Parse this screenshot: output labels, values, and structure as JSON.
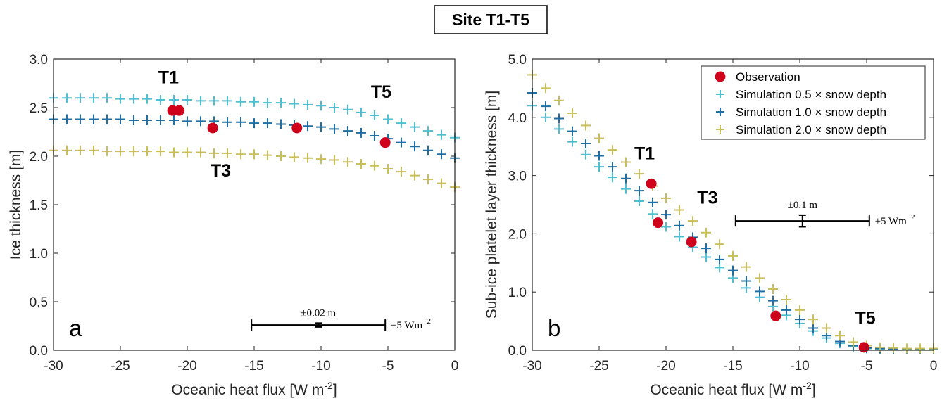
{
  "title": "Site T1-T5",
  "colors": {
    "observation": "#d0021b",
    "sim_0_5": "#4dbfd0",
    "sim_1_0": "#1f6fa5",
    "sim_2_0": "#c9bf5a"
  },
  "chart_data": [
    {
      "type": "scatter",
      "panel_label": "a",
      "xlabel": "Oceanic heat flux [W m",
      "xlabel_sup": "-2",
      "xlabel_end": "]",
      "ylabel": "Ice thickness [m]",
      "xlim": [
        -30,
        0
      ],
      "ylim": [
        0,
        3
      ],
      "xticks": [
        -30,
        -25,
        -20,
        -15,
        -10,
        -5,
        0
      ],
      "xtick_labels": [
        "-30",
        "-25",
        "-20",
        "-15",
        "-10",
        "-5",
        "0"
      ],
      "yticks": [
        0,
        0.5,
        1,
        1.5,
        2,
        2.5,
        3
      ],
      "ytick_labels": [
        "0.0",
        "0.5",
        "1.0",
        "1.5",
        "2.0",
        "2.5",
        "3.0"
      ],
      "grid": false,
      "series": [
        {
          "key": "sim_0_5",
          "marker": "plus",
          "x": [
            -30,
            -29,
            -28,
            -27,
            -26,
            -25,
            -24,
            -23,
            -22,
            -21,
            -20,
            -19,
            -18,
            -17,
            -16,
            -15,
            -14,
            -13,
            -12,
            -11,
            -10,
            -9,
            -8,
            -7,
            -6,
            -5,
            -4,
            -3,
            -2,
            -1,
            0
          ],
          "y": [
            2.6,
            2.6,
            2.6,
            2.6,
            2.6,
            2.59,
            2.59,
            2.59,
            2.58,
            2.58,
            2.58,
            2.57,
            2.57,
            2.57,
            2.56,
            2.56,
            2.55,
            2.55,
            2.54,
            2.53,
            2.52,
            2.5,
            2.48,
            2.45,
            2.42,
            2.38,
            2.34,
            2.3,
            2.26,
            2.22,
            2.19
          ]
        },
        {
          "key": "sim_1_0",
          "marker": "plus",
          "x": [
            -30,
            -29,
            -28,
            -27,
            -26,
            -25,
            -24,
            -23,
            -22,
            -21,
            -20,
            -19,
            -18,
            -17,
            -16,
            -15,
            -14,
            -13,
            -12,
            -11,
            -10,
            -9,
            -8,
            -7,
            -6,
            -5,
            -4,
            -3,
            -2,
            -1,
            0
          ],
          "y": [
            2.38,
            2.38,
            2.38,
            2.38,
            2.38,
            2.38,
            2.37,
            2.37,
            2.37,
            2.37,
            2.36,
            2.36,
            2.36,
            2.35,
            2.35,
            2.34,
            2.34,
            2.33,
            2.32,
            2.31,
            2.3,
            2.28,
            2.26,
            2.24,
            2.21,
            2.18,
            2.14,
            2.1,
            2.06,
            2.02,
            1.98
          ]
        },
        {
          "key": "sim_2_0",
          "marker": "plus",
          "x": [
            -30,
            -29,
            -28,
            -27,
            -26,
            -25,
            -24,
            -23,
            -22,
            -21,
            -20,
            -19,
            -18,
            -17,
            -16,
            -15,
            -14,
            -13,
            -12,
            -11,
            -10,
            -9,
            -8,
            -7,
            -6,
            -5,
            -4,
            -3,
            -2,
            -1,
            0
          ],
          "y": [
            2.06,
            2.06,
            2.06,
            2.06,
            2.05,
            2.05,
            2.05,
            2.05,
            2.05,
            2.04,
            2.04,
            2.04,
            2.03,
            2.03,
            2.02,
            2.02,
            2.01,
            2.0,
            1.99,
            1.98,
            1.97,
            1.96,
            1.94,
            1.92,
            1.9,
            1.87,
            1.84,
            1.8,
            1.76,
            1.72,
            1.68
          ]
        },
        {
          "key": "observation",
          "marker": "dot",
          "x": [
            -21.1,
            -20.6,
            -18.1,
            -11.8,
            -5.2
          ],
          "y": [
            2.47,
            2.47,
            2.29,
            2.29,
            2.14
          ]
        }
      ],
      "annotations": [
        {
          "text": "T1",
          "x": -21.4,
          "y": 2.75
        },
        {
          "text": "T5",
          "x": -5.5,
          "y": 2.6
        },
        {
          "text": "T3",
          "x": -17.5,
          "y": 1.79
        }
      ],
      "error_bars": {
        "x_center": -10.2,
        "y_center": 0.26,
        "x_half_width": 5,
        "y_half_width": 0.02,
        "x_label": "±5 Wm",
        "x_label_sup": "−2",
        "y_label": "±0.02 m"
      }
    },
    {
      "type": "scatter",
      "panel_label": "b",
      "xlabel": "Oceanic heat flux [W m",
      "xlabel_sup": "-2",
      "xlabel_end": "]",
      "ylabel": "Sub-ice platelet layer thickness [m]",
      "xlim": [
        -30,
        0
      ],
      "ylim": [
        0,
        5
      ],
      "xticks": [
        -30,
        -25,
        -20,
        -15,
        -10,
        -5,
        0
      ],
      "xtick_labels": [
        "-30",
        "-25",
        "-20",
        "-15",
        "-10",
        "-5",
        "0"
      ],
      "yticks": [
        0,
        1,
        2,
        3,
        4,
        5
      ],
      "ytick_labels": [
        "0.0",
        "1.0",
        "2.0",
        "3.0",
        "4.0",
        "5.0"
      ],
      "grid": false,
      "legend_position": "top-right",
      "legend": [
        {
          "key": "observation",
          "marker": "dot",
          "label": "Observation"
        },
        {
          "key": "sim_0_5",
          "marker": "plus",
          "label": "Simulation 0.5 × snow depth"
        },
        {
          "key": "sim_1_0",
          "marker": "plus",
          "label": "Simulation 1.0 × snow depth"
        },
        {
          "key": "sim_2_0",
          "marker": "plus",
          "label": "Simulation 2.0 × snow depth"
        }
      ],
      "series": [
        {
          "key": "sim_0_5",
          "marker": "plus",
          "x": [
            -30,
            -29,
            -28,
            -27,
            -26,
            -25,
            -24,
            -23,
            -22,
            -21,
            -20,
            -19,
            -18,
            -17,
            -16,
            -15,
            -14,
            -13,
            -12,
            -11,
            -10,
            -9,
            -8,
            -7,
            -6,
            -5,
            -4,
            -3,
            -2,
            -1,
            0
          ],
          "y": [
            4.2,
            4.0,
            3.8,
            3.58,
            3.36,
            3.15,
            2.97,
            2.77,
            2.56,
            2.34,
            2.12,
            1.95,
            1.77,
            1.6,
            1.42,
            1.24,
            1.07,
            0.91,
            0.75,
            0.6,
            0.46,
            0.33,
            0.21,
            0.12,
            0.06,
            0.03,
            0.02,
            0.02,
            0.02,
            0.02,
            0.02
          ]
        },
        {
          "key": "sim_1_0",
          "marker": "plus",
          "x": [
            -30,
            -29,
            -28,
            -27,
            -26,
            -25,
            -24,
            -23,
            -22,
            -21,
            -20,
            -19,
            -18,
            -17,
            -16,
            -15,
            -14,
            -13,
            -12,
            -11,
            -10,
            -9,
            -8,
            -7,
            -6,
            -5,
            -4,
            -3,
            -2,
            -1,
            0
          ],
          "y": [
            4.42,
            4.19,
            3.98,
            3.76,
            3.55,
            3.34,
            3.15,
            2.95,
            2.74,
            2.54,
            2.33,
            2.14,
            1.94,
            1.75,
            1.56,
            1.37,
            1.19,
            1.01,
            0.85,
            0.69,
            0.53,
            0.38,
            0.25,
            0.15,
            0.08,
            0.04,
            0.03,
            0.02,
            0.02,
            0.02,
            0.02
          ]
        },
        {
          "key": "sim_2_0",
          "marker": "plus",
          "x": [
            -30,
            -29,
            -28,
            -27,
            -26,
            -25,
            -24,
            -23,
            -22,
            -21,
            -20,
            -19,
            -18,
            -17,
            -16,
            -15,
            -14,
            -13,
            -12,
            -11,
            -10,
            -9,
            -8,
            -7,
            -6,
            -5,
            -4,
            -3,
            -2,
            -1,
            0
          ],
          "y": [
            4.73,
            4.5,
            4.29,
            4.07,
            3.86,
            3.64,
            3.44,
            3.23,
            3.03,
            2.82,
            2.61,
            2.41,
            2.22,
            2.02,
            1.82,
            1.62,
            1.43,
            1.24,
            1.05,
            0.87,
            0.69,
            0.53,
            0.38,
            0.25,
            0.14,
            0.08,
            0.05,
            0.04,
            0.03,
            0.03,
            0.03
          ]
        },
        {
          "key": "observation",
          "marker": "dot",
          "x": [
            -21.1,
            -20.6,
            -18.1,
            -11.8,
            -5.2
          ],
          "y": [
            2.86,
            2.19,
            1.86,
            0.59,
            0.05
          ]
        }
      ],
      "annotations": [
        {
          "text": "T1",
          "x": -21.6,
          "y": 3.28
        },
        {
          "text": "T3",
          "x": -16.9,
          "y": 2.52
        },
        {
          "text": "T5",
          "x": -5.1,
          "y": 0.45
        }
      ],
      "error_bars": {
        "x_center": -9.8,
        "y_center": 2.22,
        "x_half_width": 5,
        "y_half_width": 0.1,
        "x_label": "±5 Wm",
        "x_label_sup": "−2",
        "y_label": "±0.1 m"
      }
    }
  ]
}
